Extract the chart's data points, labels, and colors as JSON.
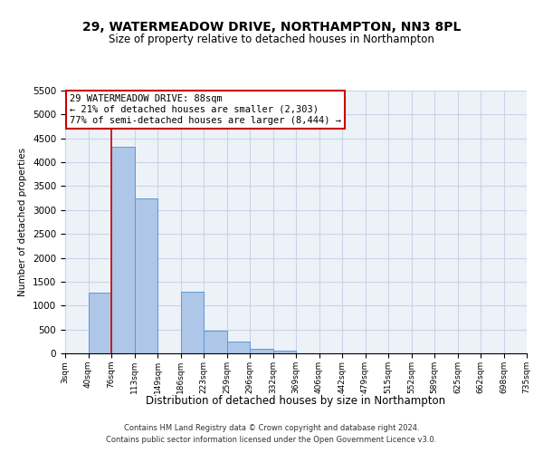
{
  "title": "29, WATERMEADOW DRIVE, NORTHAMPTON, NN3 8PL",
  "subtitle": "Size of property relative to detached houses in Northampton",
  "xlabel": "Distribution of detached houses by size in Northampton",
  "ylabel": "Number of detached properties",
  "bin_labels": [
    "3sqm",
    "40sqm",
    "76sqm",
    "113sqm",
    "149sqm",
    "186sqm",
    "223sqm",
    "259sqm",
    "296sqm",
    "332sqm",
    "369sqm",
    "406sqm",
    "442sqm",
    "479sqm",
    "515sqm",
    "552sqm",
    "589sqm",
    "625sqm",
    "662sqm",
    "698sqm",
    "735sqm"
  ],
  "bar_values": [
    0,
    1270,
    4330,
    3250,
    0,
    1290,
    480,
    240,
    90,
    60,
    0,
    0,
    0,
    0,
    0,
    0,
    0,
    0,
    0,
    0
  ],
  "bar_color": "#aec6e8",
  "bar_edge_color": "#5b9bd5",
  "ylim": [
    0,
    5500
  ],
  "yticks": [
    0,
    500,
    1000,
    1500,
    2000,
    2500,
    3000,
    3500,
    4000,
    4500,
    5000,
    5500
  ],
  "vline_x": 2,
  "vline_color": "#cc0000",
  "annotation_title": "29 WATERMEADOW DRIVE: 88sqm",
  "annotation_line1": "← 21% of detached houses are smaller (2,303)",
  "annotation_line2": "77% of semi-detached houses are larger (8,444) →",
  "annotation_box_color": "#ffffff",
  "annotation_box_edge": "#cc0000",
  "background_color": "#ffffff",
  "grid_color": "#c8d4e8",
  "footer_line1": "Contains HM Land Registry data © Crown copyright and database right 2024.",
  "footer_line2": "Contains public sector information licensed under the Open Government Licence v3.0."
}
